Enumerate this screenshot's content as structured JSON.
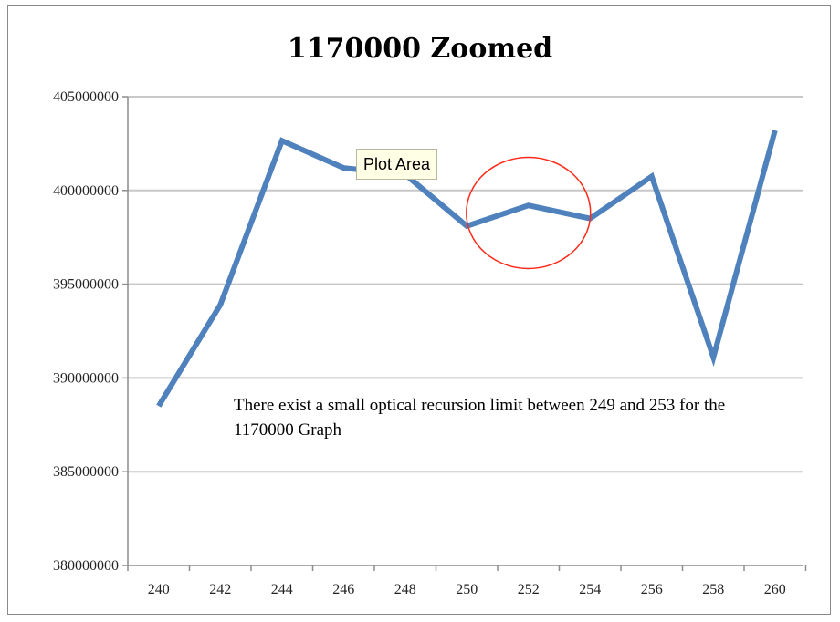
{
  "chart_data": {
    "type": "line",
    "title": "1170000 Zoomed",
    "xlabel": "",
    "ylabel": "",
    "x": [
      240,
      242,
      244,
      246,
      248,
      250,
      252,
      254,
      256,
      258,
      260
    ],
    "x_tick_labels": [
      "240",
      "242",
      "244",
      "246",
      "248",
      "250",
      "252",
      "254",
      "256",
      "258",
      "260"
    ],
    "y_tick_labels": [
      "405000000",
      "400000000",
      "395000000",
      "390000000",
      "385000000",
      "380000000"
    ],
    "y_ticks": [
      405000000,
      400000000,
      395000000,
      390000000,
      385000000,
      380000000
    ],
    "ylim": [
      380000000,
      405000000
    ],
    "grid": true,
    "series": [
      {
        "values": [
          388500000,
          393900000,
          402650000,
          401200000,
          400850000,
          398100000,
          399200000,
          398500000,
          400750000,
          391100000,
          403200000
        ],
        "color": "#4f81bd"
      }
    ],
    "annotation_text": "There exist a small optical recursion limit between 249 and 253 for the 1170000 Graph",
    "highlight": {
      "shape": "ellipse",
      "color": "#ff2a1a",
      "x_center": 252,
      "y_center": 398800000
    }
  },
  "tooltip": {
    "text": "Plot Area"
  }
}
